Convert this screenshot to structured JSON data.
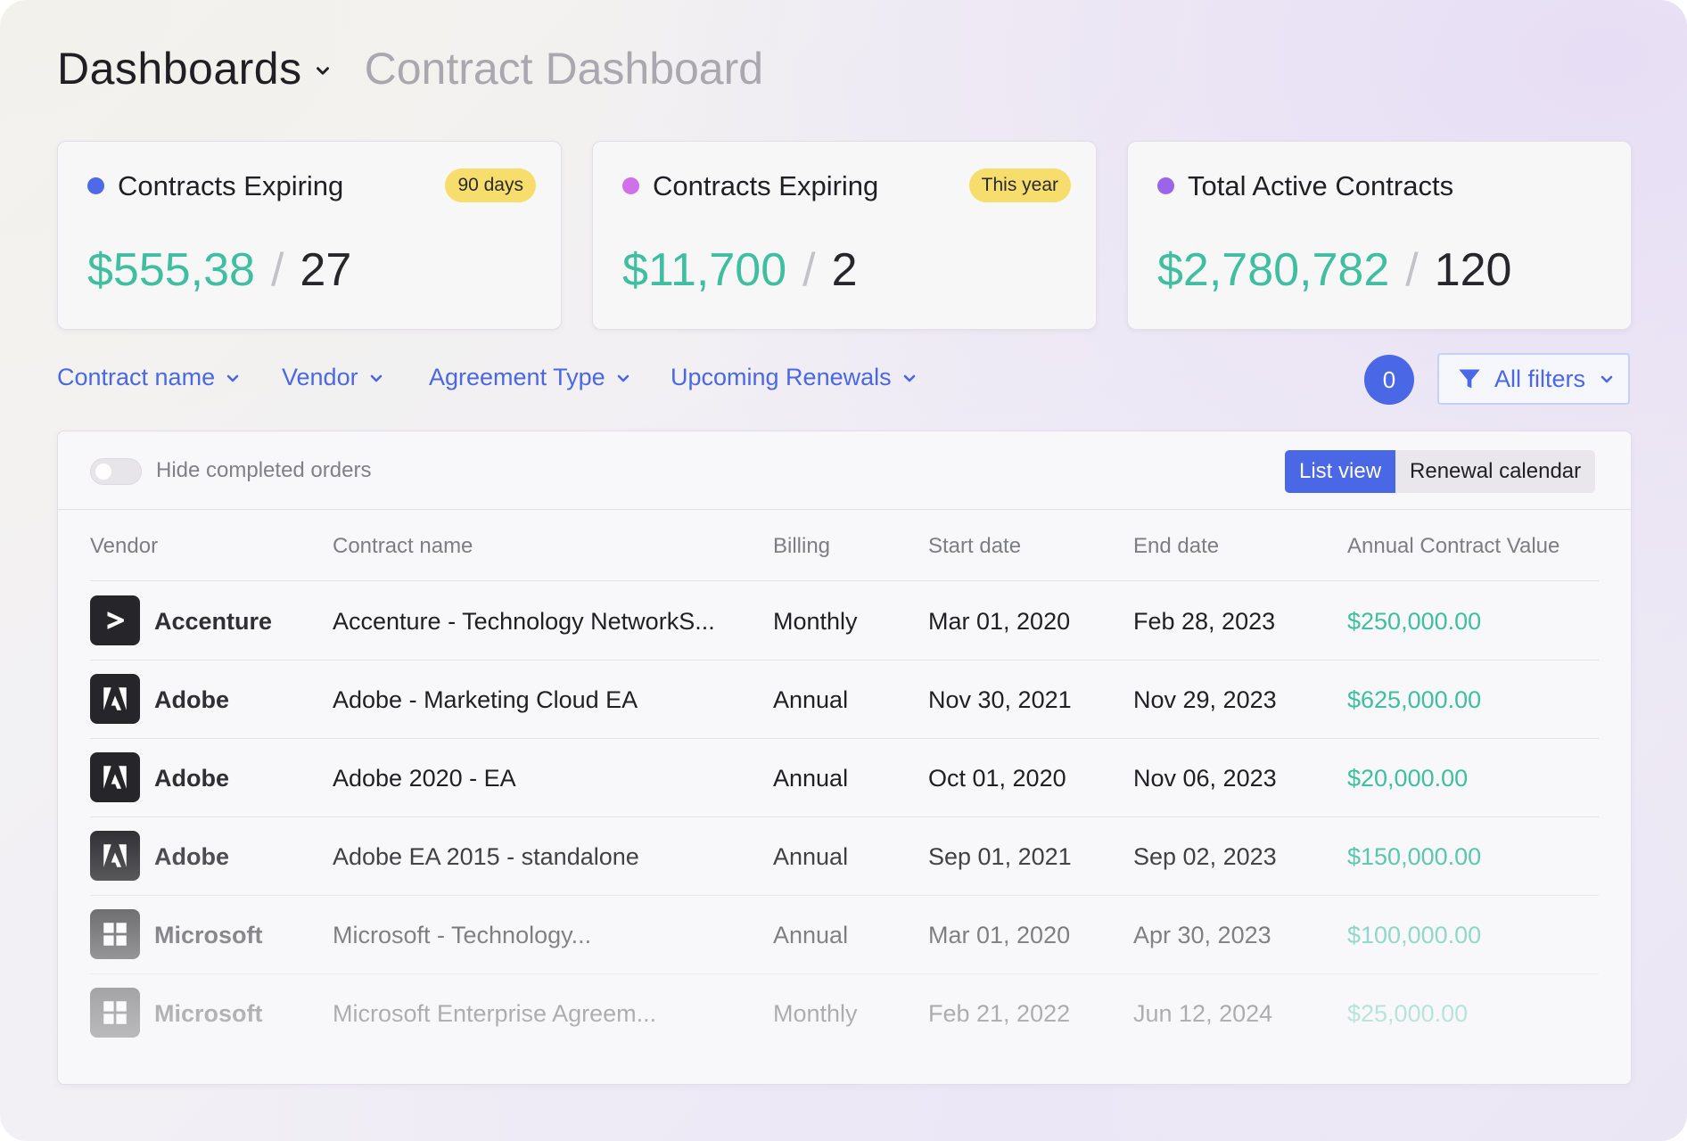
{
  "header": {
    "title": "Dashboards",
    "subtitle": "Contract Dashboard"
  },
  "cards": [
    {
      "label": "Contracts Expiring",
      "badge": "90 days",
      "amount": "$555,38",
      "count": "27",
      "dot_color": "#4f6ae8"
    },
    {
      "label": "Contracts Expiring",
      "badge": "This year",
      "amount": "$11,700",
      "count": "2",
      "dot_color": "#d070ea"
    },
    {
      "label": "Total Active Contracts",
      "badge": "",
      "amount": "$2,780,782",
      "count": "120",
      "dot_color": "#9b64ea"
    }
  ],
  "slash": "/",
  "filters": [
    {
      "label": "Contract name"
    },
    {
      "label": "Vendor"
    },
    {
      "label": "Agreement Type"
    },
    {
      "label": "Upcoming Renewals"
    }
  ],
  "active_filter_count": "0",
  "all_filters_label": "All filters",
  "panel": {
    "toggle_label": "Hide completed orders",
    "toggle_on": false,
    "views": {
      "list": "List view",
      "calendar": "Renewal calendar"
    },
    "active_view": "list"
  },
  "table": {
    "columns": [
      "Vendor",
      "Contract name",
      "Billing",
      "Start date",
      "End date",
      "Annual Contract Value"
    ],
    "rows": [
      {
        "vendor": "Accenture",
        "logo": "accenture-icon",
        "contract": "Accenture - Technology  NetworkS...",
        "billing": "Monthly",
        "start": "Mar 01, 2020",
        "end": "Feb 28, 2023",
        "value": "$250,000.00"
      },
      {
        "vendor": "Adobe",
        "logo": "adobe-icon",
        "contract": "Adobe - Marketing Cloud EA",
        "billing": "Annual",
        "start": "Nov 30, 2021",
        "end": "Nov 29, 2023",
        "value": "$625,000.00"
      },
      {
        "vendor": "Adobe",
        "logo": "adobe-icon",
        "contract": "Adobe 2020 - EA",
        "billing": "Annual",
        "start": "Oct 01, 2020",
        "end": "Nov 06, 2023",
        "value": "$20,000.00"
      },
      {
        "vendor": "Adobe",
        "logo": "adobe-icon",
        "contract": "Adobe EA 2015 - standalone",
        "billing": "Annual",
        "start": "Sep 01, 2021",
        "end": "Sep 02, 2023",
        "value": "$150,000.00"
      },
      {
        "vendor": "Microsoft",
        "logo": "microsoft-icon",
        "contract": "Microsoft - Technology...",
        "billing": "Annual",
        "start": "Mar 01, 2020",
        "end": "Apr 30, 2023",
        "value": "$100,000.00"
      },
      {
        "vendor": "Microsoft",
        "logo": "microsoft-icon",
        "contract": "Microsoft Enterprise Agreem...",
        "billing": "Monthly",
        "start": "Feb 21, 2022",
        "end": "Jun 12, 2024",
        "value": "$25,000.00"
      }
    ]
  },
  "colors": {
    "accent": "#4a67e6",
    "money": "#3fbfa0",
    "badge": "#f6dd6c"
  }
}
